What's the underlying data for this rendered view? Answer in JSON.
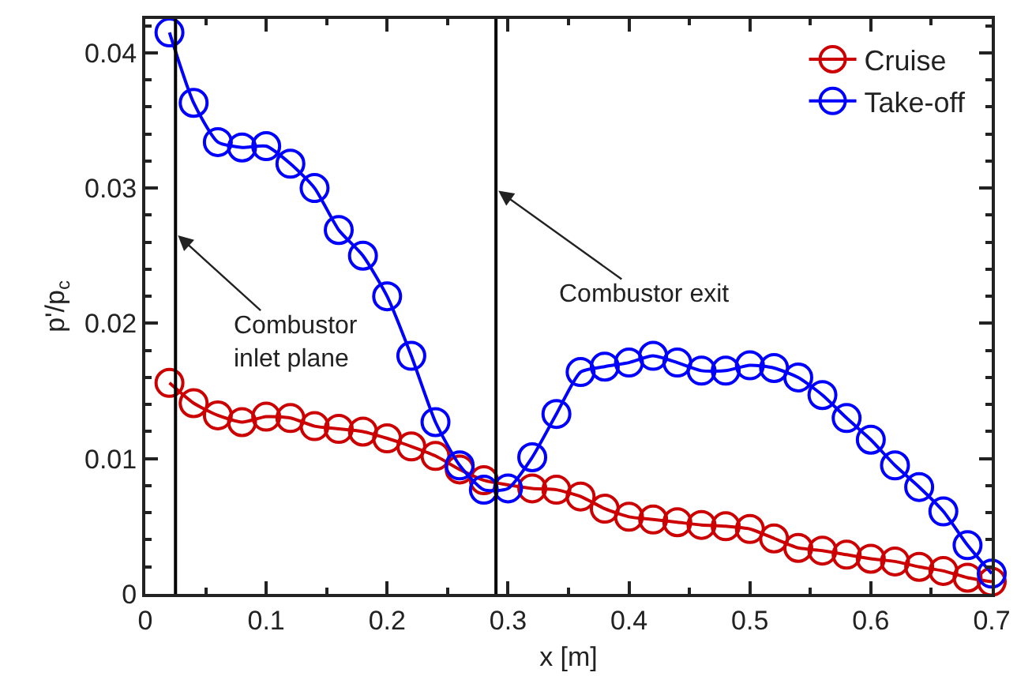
{
  "chart_data": {
    "type": "line",
    "xlabel": "x [m]",
    "ylabel": "p'/p$_{c}$",
    "x": [
      0.02,
      0.04,
      0.06,
      0.08,
      0.1,
      0.12,
      0.14,
      0.16,
      0.18,
      0.2,
      0.22,
      0.24,
      0.26,
      0.28,
      0.3,
      0.32,
      0.34,
      0.36,
      0.38,
      0.4,
      0.42,
      0.44,
      0.46,
      0.48,
      0.5,
      0.52,
      0.54,
      0.56,
      0.58,
      0.6,
      0.62,
      0.64,
      0.66,
      0.68,
      0.7
    ],
    "series": [
      {
        "name": "Cruise",
        "color": "#cc0000",
        "values": [
          0.0156,
          0.0141,
          0.0132,
          0.0127,
          0.0131,
          0.013,
          0.0124,
          0.0122,
          0.012,
          0.0115,
          0.0109,
          0.0102,
          0.0092,
          0.0084,
          null,
          0.0078,
          0.0077,
          0.0072,
          0.0063,
          0.0057,
          0.0055,
          0.0053,
          0.0051,
          0.005,
          0.0048,
          0.0041,
          0.0034,
          0.0032,
          0.0029,
          0.0026,
          0.0024,
          0.002,
          0.0017,
          0.0012,
          0.0009
        ]
      },
      {
        "name": "Take-off",
        "color": "#0000ff",
        "values": [
          0.0415,
          0.0363,
          0.0334,
          0.033,
          0.0331,
          0.0318,
          0.03,
          0.0269,
          0.025,
          0.022,
          0.0176,
          0.0127,
          0.0095,
          0.0077,
          0.0078,
          0.0101,
          0.0133,
          0.0164,
          0.0168,
          0.0171,
          0.0176,
          0.0171,
          0.0165,
          0.0165,
          0.0169,
          0.0167,
          0.016,
          0.0147,
          0.013,
          0.0114,
          0.0095,
          0.0079,
          0.0061,
          0.0036,
          0.0015
        ]
      }
    ],
    "xlim": [
      0,
      0.7
    ],
    "xticks": [
      0,
      0.1,
      0.2,
      0.3,
      0.4,
      0.5,
      0.6,
      0.7
    ],
    "ylim": [
      0,
      0.0425
    ],
    "yticks": [
      0,
      0.01,
      0.02,
      0.03,
      0.04
    ],
    "ref_lines": [
      {
        "axis": "x",
        "value": 0.025,
        "label": null,
        "color": "#000000"
      },
      {
        "axis": "x",
        "value": 0.29,
        "label": null,
        "color": "#000000"
      }
    ],
    "annotations": [
      {
        "text": "Combustor\ninlet plane",
        "x": 0.027,
        "y": 0.0265
      },
      {
        "text": "Combustor exit",
        "x": 0.292,
        "y": 0.0298
      }
    ],
    "marker": "circle",
    "line_style": "solid",
    "grid": false,
    "legend": "top right"
  }
}
